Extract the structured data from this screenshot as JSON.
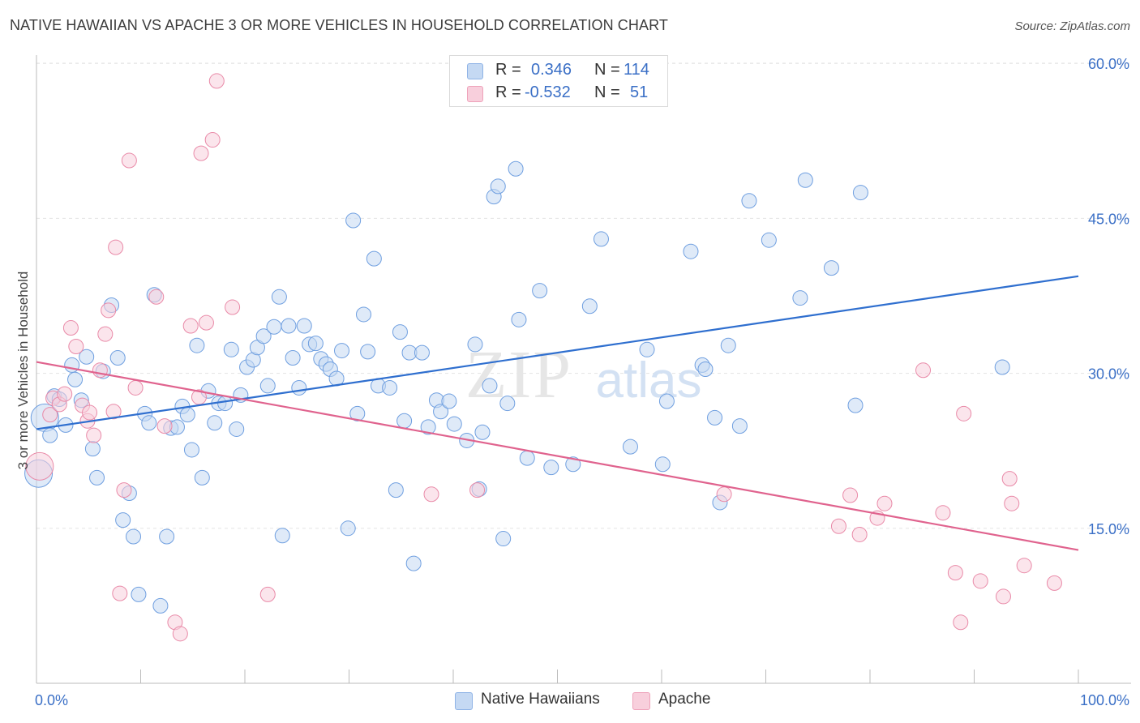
{
  "header": {
    "title": "NATIVE HAWAIIAN VS APACHE 3 OR MORE VEHICLES IN HOUSEHOLD CORRELATION CHART",
    "source": "Source: ZipAtlas.com"
  },
  "watermark": "ZIPatlas",
  "legend": {
    "rows": [
      {
        "r_label": "R =",
        "r_value": "0.346",
        "n_label": "N =",
        "n_value": "114",
        "color": "#a9c6ef"
      },
      {
        "r_label": "R =",
        "r_value": "-0.532",
        "n_label": "N =",
        "n_value": "51",
        "color": "#f5b8ca"
      }
    ]
  },
  "bottom_legend": [
    {
      "label": "Native Hawaiians",
      "color": "#a9c6ef"
    },
    {
      "label": "Apache",
      "color": "#f5b8ca"
    }
  ],
  "chart_data": {
    "type": "scatter",
    "title": "NATIVE HAWAIIAN VS APACHE 3 OR MORE VEHICLES IN HOUSEHOLD CORRELATION CHART",
    "xlabel": "",
    "ylabel": "3 or more Vehicles in Household",
    "xlim": [
      0,
      100
    ],
    "ylim": [
      0,
      63
    ],
    "x_tick_labels": [
      "0.0%",
      "100.0%"
    ],
    "y_ticks": [
      15,
      30,
      45,
      60
    ],
    "y_tick_labels": [
      "15.0%",
      "30.0%",
      "45.0%",
      "60.0%"
    ],
    "grid": true,
    "legend_position": "top-center",
    "series": [
      {
        "name": "Native Hawaiians",
        "color": "#6f9fe0",
        "fill": "#c5d9f3",
        "trend": {
          "x": [
            0,
            100
          ],
          "y": [
            24.6,
            39.4
          ],
          "color": "#2f6fcf"
        },
        "points": [
          [
            0.2,
            20.3
          ],
          [
            0.8,
            25.7
          ],
          [
            1.3,
            24.0
          ],
          [
            1.7,
            27.8
          ],
          [
            2.2,
            27.5
          ],
          [
            2.8,
            25.0
          ],
          [
            3.4,
            30.8
          ],
          [
            3.7,
            29.4
          ],
          [
            4.3,
            27.4
          ],
          [
            4.8,
            31.6
          ],
          [
            5.4,
            22.7
          ],
          [
            5.8,
            19.9
          ],
          [
            6.4,
            30.2
          ],
          [
            7.2,
            36.6
          ],
          [
            7.8,
            31.5
          ],
          [
            8.3,
            15.8
          ],
          [
            8.9,
            18.4
          ],
          [
            9.3,
            14.2
          ],
          [
            9.8,
            8.6
          ],
          [
            10.4,
            26.1
          ],
          [
            10.8,
            25.2
          ],
          [
            11.3,
            37.6
          ],
          [
            11.9,
            7.5
          ],
          [
            12.5,
            14.2
          ],
          [
            12.9,
            24.7
          ],
          [
            13.5,
            24.8
          ],
          [
            14.0,
            26.8
          ],
          [
            14.5,
            26.0
          ],
          [
            14.9,
            22.6
          ],
          [
            15.4,
            32.7
          ],
          [
            15.9,
            19.9
          ],
          [
            16.5,
            28.3
          ],
          [
            17.1,
            25.2
          ],
          [
            17.5,
            27.1
          ],
          [
            18.1,
            27.1
          ],
          [
            18.7,
            32.3
          ],
          [
            19.2,
            24.6
          ],
          [
            19.6,
            27.9
          ],
          [
            20.2,
            30.6
          ],
          [
            20.8,
            31.3
          ],
          [
            21.2,
            32.5
          ],
          [
            21.8,
            33.6
          ],
          [
            22.2,
            28.8
          ],
          [
            22.8,
            34.5
          ],
          [
            23.3,
            37.4
          ],
          [
            23.6,
            14.3
          ],
          [
            24.2,
            34.6
          ],
          [
            24.6,
            31.5
          ],
          [
            25.2,
            28.6
          ],
          [
            25.7,
            34.6
          ],
          [
            26.2,
            32.8
          ],
          [
            26.8,
            32.9
          ],
          [
            27.3,
            31.4
          ],
          [
            27.8,
            30.9
          ],
          [
            28.2,
            30.4
          ],
          [
            28.8,
            29.5
          ],
          [
            29.3,
            32.2
          ],
          [
            29.9,
            15.0
          ],
          [
            30.4,
            44.8
          ],
          [
            30.8,
            26.1
          ],
          [
            31.4,
            35.7
          ],
          [
            31.8,
            32.1
          ],
          [
            32.4,
            41.1
          ],
          [
            32.8,
            28.8
          ],
          [
            33.9,
            28.6
          ],
          [
            34.5,
            18.7
          ],
          [
            34.9,
            34.0
          ],
          [
            35.3,
            25.4
          ],
          [
            35.8,
            32.0
          ],
          [
            36.2,
            11.6
          ],
          [
            37.0,
            32.0
          ],
          [
            37.6,
            24.8
          ],
          [
            38.4,
            27.4
          ],
          [
            38.8,
            26.3
          ],
          [
            39.6,
            27.3
          ],
          [
            40.1,
            25.1
          ],
          [
            41.3,
            23.5
          ],
          [
            42.1,
            32.8
          ],
          [
            42.5,
            18.8
          ],
          [
            42.8,
            24.3
          ],
          [
            43.5,
            28.8
          ],
          [
            43.9,
            47.1
          ],
          [
            44.3,
            48.1
          ],
          [
            44.8,
            14.0
          ],
          [
            45.2,
            27.1
          ],
          [
            46.0,
            49.8
          ],
          [
            46.3,
            35.2
          ],
          [
            47.1,
            21.8
          ],
          [
            48.3,
            38.0
          ],
          [
            49.4,
            20.9
          ],
          [
            51.5,
            21.2
          ],
          [
            53.1,
            36.5
          ],
          [
            54.2,
            43.0
          ],
          [
            57.0,
            22.9
          ],
          [
            58.6,
            32.3
          ],
          [
            60.1,
            21.2
          ],
          [
            60.5,
            27.3
          ],
          [
            62.8,
            41.8
          ],
          [
            63.9,
            30.8
          ],
          [
            64.2,
            30.4
          ],
          [
            65.1,
            25.7
          ],
          [
            65.6,
            17.5
          ],
          [
            66.4,
            32.7
          ],
          [
            67.5,
            24.9
          ],
          [
            68.4,
            46.7
          ],
          [
            70.3,
            42.9
          ],
          [
            73.3,
            37.3
          ],
          [
            73.8,
            48.7
          ],
          [
            76.3,
            40.2
          ],
          [
            78.6,
            26.9
          ],
          [
            79.1,
            47.5
          ],
          [
            92.7,
            30.6
          ]
        ]
      },
      {
        "name": "Apache",
        "color": "#e98aa8",
        "fill": "#f8cfdc",
        "trend": {
          "x": [
            0,
            100
          ],
          "y": [
            31.1,
            12.9
          ],
          "color": "#e0638e"
        },
        "points": [
          [
            0.3,
            21.0
          ],
          [
            1.3,
            26.0
          ],
          [
            1.6,
            27.6
          ],
          [
            2.2,
            27.0
          ],
          [
            2.7,
            28.0
          ],
          [
            3.3,
            34.4
          ],
          [
            3.8,
            32.6
          ],
          [
            4.4,
            26.9
          ],
          [
            4.9,
            25.4
          ],
          [
            5.1,
            26.2
          ],
          [
            5.5,
            24.0
          ],
          [
            6.1,
            30.3
          ],
          [
            6.6,
            33.8
          ],
          [
            6.9,
            36.1
          ],
          [
            7.4,
            26.3
          ],
          [
            7.6,
            42.2
          ],
          [
            8.0,
            8.7
          ],
          [
            8.4,
            18.7
          ],
          [
            8.9,
            50.6
          ],
          [
            9.5,
            28.6
          ],
          [
            11.5,
            37.4
          ],
          [
            12.3,
            24.9
          ],
          [
            13.3,
            5.9
          ],
          [
            13.8,
            4.8
          ],
          [
            14.8,
            34.6
          ],
          [
            15.6,
            27.7
          ],
          [
            15.8,
            51.3
          ],
          [
            16.3,
            34.9
          ],
          [
            16.9,
            52.6
          ],
          [
            17.3,
            58.3
          ],
          [
            18.8,
            36.4
          ],
          [
            22.2,
            8.6
          ],
          [
            37.9,
            18.3
          ],
          [
            42.3,
            18.7
          ],
          [
            66.0,
            18.3
          ],
          [
            77.0,
            15.2
          ],
          [
            78.1,
            18.2
          ],
          [
            79.0,
            14.4
          ],
          [
            80.7,
            16.0
          ],
          [
            81.4,
            17.4
          ],
          [
            85.1,
            30.3
          ],
          [
            87.0,
            16.5
          ],
          [
            88.7,
            5.9
          ],
          [
            88.2,
            10.7
          ],
          [
            89.0,
            26.1
          ],
          [
            90.6,
            9.9
          ],
          [
            92.8,
            8.4
          ],
          [
            93.4,
            19.8
          ],
          [
            93.6,
            17.4
          ],
          [
            94.8,
            11.4
          ],
          [
            97.7,
            9.7
          ]
        ]
      }
    ]
  }
}
